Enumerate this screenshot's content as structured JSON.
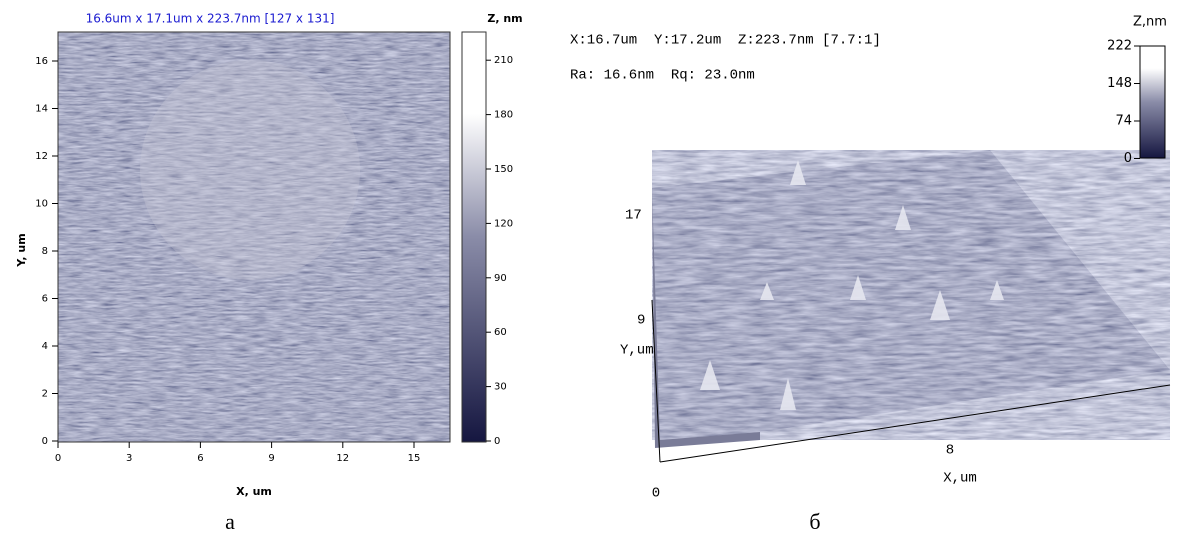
{
  "panel_a": {
    "title": "16.6um x 17.1um x 223.7nm [127 x 131]",
    "x_label": "X, um",
    "y_label": "Y, um",
    "x_ticks": [
      "0",
      "3",
      "6",
      "9",
      "12",
      "15"
    ],
    "y_ticks": [
      "0",
      "2",
      "4",
      "6",
      "8",
      "10",
      "12",
      "14",
      "16"
    ],
    "colorbar_title": "Z, nm",
    "colorbar_ticks": [
      "0",
      "30",
      "60",
      "90",
      "120",
      "150",
      "180",
      "210"
    ],
    "caption": "а"
  },
  "panel_b": {
    "info_line_1": "X:16.7um  Y:17.2um  Z:223.7nm [7.7:1]",
    "info_line_2": "Ra: 16.6nm  Rq: 23.0nm",
    "colorbar_title": "Z,nm",
    "colorbar_ticks": [
      "222",
      "148",
      "74",
      "0"
    ],
    "y_label": "Y,um",
    "y_ticks": [
      "17",
      "9"
    ],
    "x_label": "X,um",
    "x_ticks": [
      "0",
      "8"
    ],
    "caption": "б"
  }
}
